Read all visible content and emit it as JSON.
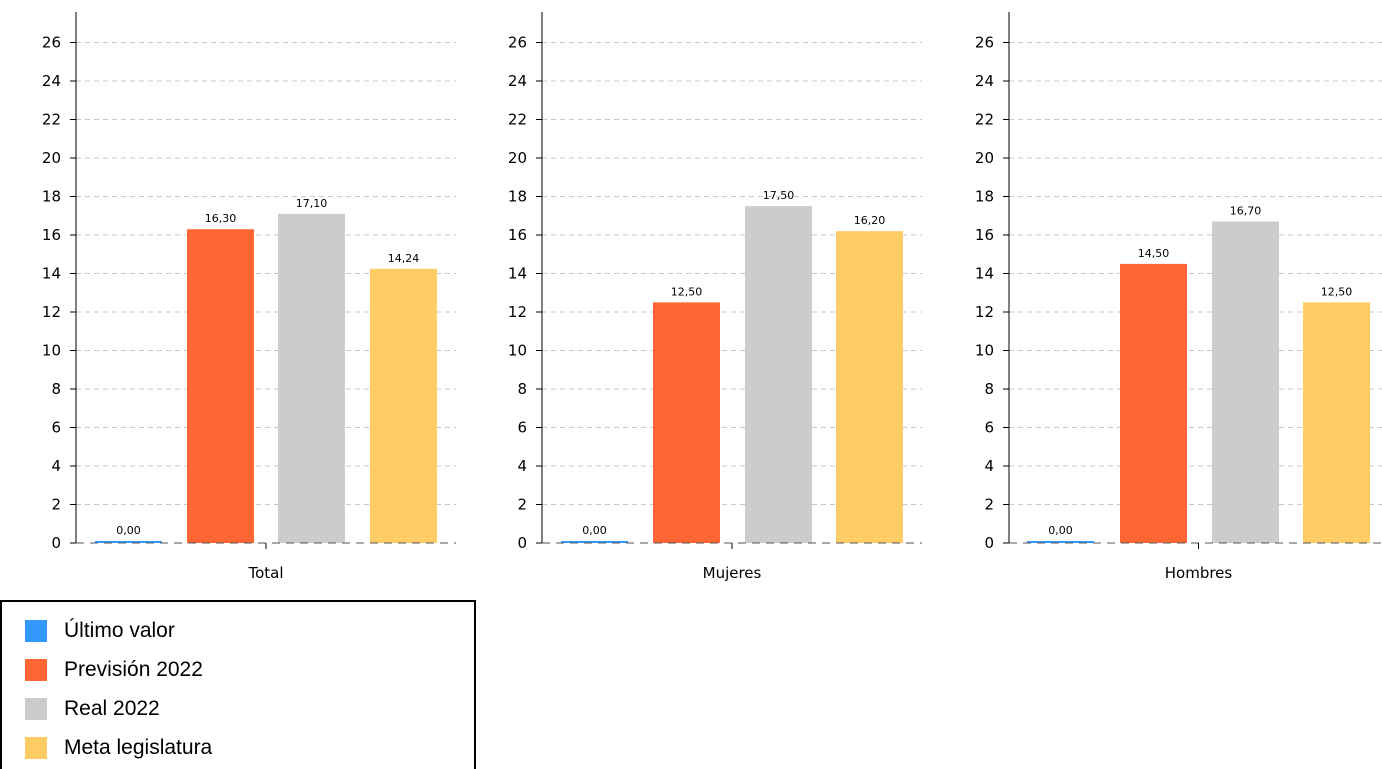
{
  "chart_data": [
    {
      "type": "bar",
      "category": "Total",
      "categories": [
        "Total"
      ],
      "series": [
        {
          "name": "Último valor",
          "values": [
            0.0
          ],
          "label": "0,00"
        },
        {
          "name": "Previsión 2022",
          "values": [
            16.3
          ],
          "label": "16,30"
        },
        {
          "name": "Real 2022",
          "values": [
            17.1
          ],
          "label": "17,10"
        },
        {
          "name": "Meta legislatura",
          "values": [
            14.24
          ],
          "label": "14,24"
        }
      ],
      "ylim": [
        0,
        27.5
      ],
      "yticks": [
        "0",
        "2",
        "4",
        "6",
        "8",
        "10",
        "12",
        "14",
        "16",
        "18",
        "20",
        "22",
        "24",
        "26"
      ],
      "grid": true,
      "gridStyle": "dashed"
    },
    {
      "type": "bar",
      "category": "Mujeres",
      "categories": [
        "Mujeres"
      ],
      "series": [
        {
          "name": "Último valor",
          "values": [
            0.0
          ],
          "label": "0,00"
        },
        {
          "name": "Previsión 2022",
          "values": [
            12.5
          ],
          "label": "12,50"
        },
        {
          "name": "Real 2022",
          "values": [
            17.5
          ],
          "label": "17,50"
        },
        {
          "name": "Meta legislatura",
          "values": [
            16.2
          ],
          "label": "16,20"
        }
      ],
      "ylim": [
        0,
        27.5
      ],
      "yticks": [
        "0",
        "2",
        "4",
        "6",
        "8",
        "10",
        "12",
        "14",
        "16",
        "18",
        "20",
        "22",
        "24",
        "26"
      ],
      "grid": true,
      "gridStyle": "dashed"
    },
    {
      "type": "bar",
      "category": "Hombres",
      "categories": [
        "Hombres"
      ],
      "series": [
        {
          "name": "Último valor",
          "values": [
            0.0
          ],
          "label": "0,00"
        },
        {
          "name": "Previsión 2022",
          "values": [
            14.5
          ],
          "label": "14,50"
        },
        {
          "name": "Real 2022",
          "values": [
            16.7
          ],
          "label": "16,70"
        },
        {
          "name": "Meta legislatura",
          "values": [
            12.5
          ],
          "label": "12,50"
        }
      ],
      "ylim": [
        0,
        27.5
      ],
      "yticks": [
        "0",
        "2",
        "4",
        "6",
        "8",
        "10",
        "12",
        "14",
        "16",
        "18",
        "20",
        "22",
        "24",
        "26"
      ],
      "grid": true,
      "gridStyle": "dashed"
    }
  ],
  "legend": {
    "placement": "bottom-left",
    "items": [
      {
        "label": "Último valor",
        "color": "#3399ff"
      },
      {
        "label": "Previsión 2022",
        "color": "#ff6633"
      },
      {
        "label": "Real 2022",
        "color": "#cccccc"
      },
      {
        "label": "Meta legislatura",
        "color": "#ffcc66"
      }
    ]
  }
}
